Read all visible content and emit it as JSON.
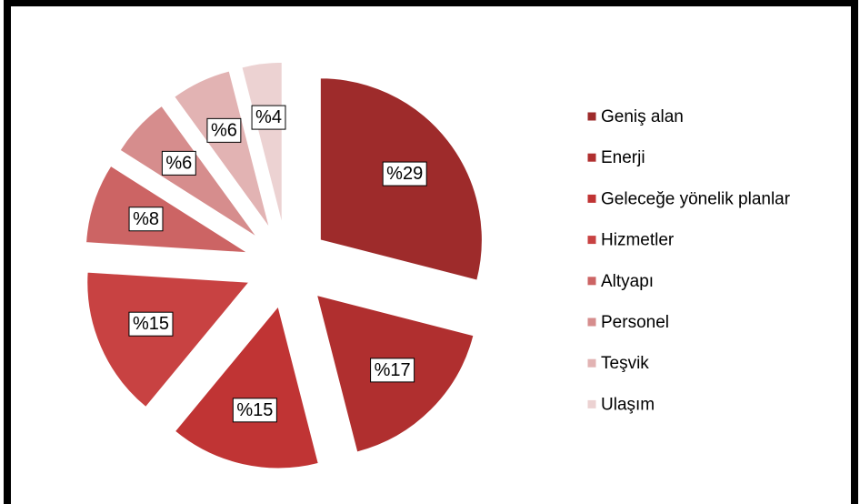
{
  "chart_data": {
    "type": "pie",
    "categories": [
      "Geniş alan",
      "Enerji",
      "Geleceğe yönelik planlar",
      "Hizmetler",
      "Altyapı",
      "Personel",
      "Teşvik",
      "Ulaşım"
    ],
    "values": [
      29,
      17,
      15,
      15,
      8,
      6,
      6,
      4
    ],
    "value_labels": [
      "%29",
      "%17",
      "%15",
      "%15",
      "%8",
      "%6",
      "%6",
      "%4"
    ],
    "colors": [
      "#9e2b2b",
      "#b02f2f",
      "#c03434",
      "#c84242",
      "#cc6464",
      "#d68d8d",
      "#e2b3b3",
      "#ecd2d2"
    ],
    "legend": "right"
  }
}
